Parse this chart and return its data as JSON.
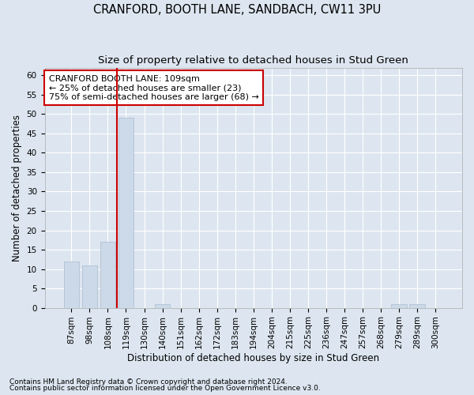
{
  "title": "CRANFORD, BOOTH LANE, SANDBACH, CW11 3PU",
  "subtitle": "Size of property relative to detached houses in Stud Green",
  "xlabel": "Distribution of detached houses by size in Stud Green",
  "ylabel": "Number of detached properties",
  "categories": [
    "87sqm",
    "98sqm",
    "108sqm",
    "119sqm",
    "130sqm",
    "140sqm",
    "151sqm",
    "162sqm",
    "172sqm",
    "183sqm",
    "194sqm",
    "204sqm",
    "215sqm",
    "225sqm",
    "236sqm",
    "247sqm",
    "257sqm",
    "268sqm",
    "279sqm",
    "289sqm",
    "300sqm"
  ],
  "values": [
    12,
    11,
    17,
    49,
    0,
    1,
    0,
    0,
    0,
    0,
    0,
    0,
    0,
    0,
    0,
    0,
    0,
    0,
    1,
    1,
    0
  ],
  "bar_color": "#ccd9e8",
  "bar_edgecolor": "#aabcce",
  "vline_x_index": 2.5,
  "vline_color": "#cc0000",
  "annotation_text": "CRANFORD BOOTH LANE: 109sqm\n← 25% of detached houses are smaller (23)\n75% of semi-detached houses are larger (68) →",
  "annotation_box_edgecolor": "#cc0000",
  "ylim": [
    0,
    62
  ],
  "yticks": [
    0,
    5,
    10,
    15,
    20,
    25,
    30,
    35,
    40,
    45,
    50,
    55,
    60
  ],
  "footnote1": "Contains HM Land Registry data © Crown copyright and database right 2024.",
  "footnote2": "Contains public sector information licensed under the Open Government Licence v3.0.",
  "background_color": "#dde6f0",
  "plot_background": "#dde6f0",
  "title_fontsize": 10.5,
  "subtitle_fontsize": 9.5,
  "label_fontsize": 8.5,
  "tick_fontsize": 7.5,
  "annotation_fontsize": 8,
  "footnote_fontsize": 6.5
}
